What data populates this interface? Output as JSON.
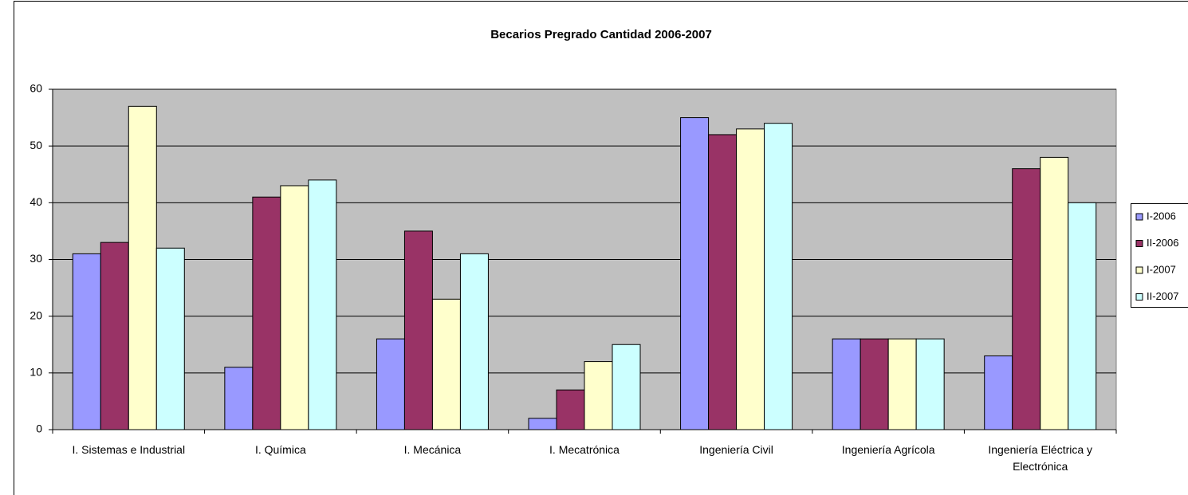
{
  "chart_data": {
    "type": "bar",
    "title": "Becarios Pregrado Cantidad 2006-2007",
    "categories": [
      "I. Sistemas e Industrial",
      "I. Química",
      "I. Mecánica",
      "I. Mecatrónica",
      "Ingeniería Civil",
      "Ingeniería Agrícola",
      "Ingeniería Eléctrica y Electrónica"
    ],
    "series": [
      {
        "name": "I-2006",
        "color": "#9999ff",
        "values": [
          31,
          11,
          16,
          2,
          55,
          16,
          13
        ]
      },
      {
        "name": "II-2006",
        "color": "#993366",
        "values": [
          33,
          41,
          35,
          7,
          52,
          16,
          46
        ]
      },
      {
        "name": "I-2007",
        "color": "#ffffcc",
        "values": [
          57,
          43,
          23,
          12,
          53,
          16,
          48
        ]
      },
      {
        "name": "II-2007",
        "color": "#ccffff",
        "values": [
          32,
          44,
          31,
          15,
          54,
          16,
          40
        ]
      }
    ],
    "ylim": [
      0,
      60
    ],
    "yticks": [
      0,
      10,
      20,
      30,
      40,
      50,
      60
    ],
    "grid": true,
    "legend": "right"
  }
}
